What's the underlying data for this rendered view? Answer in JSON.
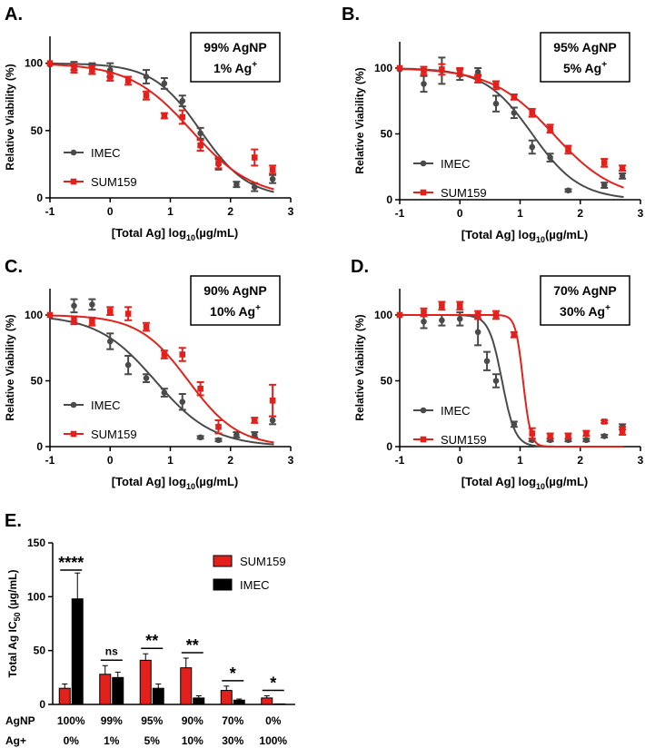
{
  "figure": {
    "colors": {
      "imec": "#4a4a4a",
      "sum159": "#e3201b",
      "axis": "#000000"
    },
    "xaxis_label_main": "[Total  Ag] log",
    "xaxis_label_sub": "10",
    "xaxis_label_end": "(µg/mL)",
    "yaxis_label": "Relative Viability (%)"
  },
  "chart_data": [
    {
      "type": "scatter",
      "panel": "A.",
      "box_line1": "99%  AgNP",
      "box_line2": "1%  Ag",
      "box_sup": "+",
      "xlim": [
        -1,
        3
      ],
      "ylim": [
        0,
        120
      ],
      "xticks": [
        -1,
        0,
        1,
        2,
        3
      ],
      "yticks": [
        0,
        50,
        100
      ],
      "series": [
        {
          "name": "IMEC",
          "color": "#4a4a4a",
          "marker": "circle",
          "x": [
            -1,
            -0.6,
            -0.3,
            0,
            0.6,
            0.9,
            1.2,
            1.5,
            1.8,
            2.1,
            2.4,
            2.7
          ],
          "y": [
            99,
            98,
            96,
            95,
            90,
            85,
            72,
            48,
            25,
            10,
            8,
            14
          ],
          "err": [
            0,
            3,
            4,
            5,
            5,
            4,
            4,
            4,
            4,
            2,
            3,
            3
          ],
          "fit": {
            "top": 100,
            "bottom": 0,
            "logEC50": 1.5,
            "hill": 1.1
          }
        },
        {
          "name": "SUM159",
          "color": "#e3201b",
          "marker": "square",
          "x": [
            -1,
            -0.6,
            -0.3,
            0,
            0.3,
            0.6,
            0.9,
            1.2,
            1.5,
            1.8,
            2.4,
            2.7
          ],
          "y": [
            100,
            96,
            95,
            90,
            87,
            76,
            61,
            60,
            39,
            26,
            30,
            21
          ],
          "err": [
            0,
            3,
            3,
            3,
            3,
            3,
            2,
            5,
            4,
            4,
            6,
            3
          ],
          "fit": {
            "top": 100,
            "bottom": 0,
            "logEC50": 1.35,
            "hill": 0.85
          }
        }
      ]
    },
    {
      "type": "scatter",
      "panel": "B.",
      "box_line1": "95%  AgNP",
      "box_line2": "5%  Ag",
      "box_sup": "+",
      "xlim": [
        -1,
        3
      ],
      "ylim": [
        0,
        120
      ],
      "xticks": [
        -1,
        0,
        1,
        2,
        3
      ],
      "yticks": [
        0,
        50,
        100
      ],
      "series": [
        {
          "name": "IMEC",
          "color": "#4a4a4a",
          "marker": "circle",
          "x": [
            -1,
            -0.6,
            -0.3,
            0,
            0.3,
            0.6,
            0.9,
            1.2,
            1.5,
            1.8,
            2.4,
            2.7
          ],
          "y": [
            99,
            88,
            98,
            95,
            97,
            73,
            66,
            40,
            32,
            7,
            11,
            18
          ],
          "err": [
            0,
            6,
            10,
            4,
            3,
            6,
            4,
            5,
            3,
            1,
            2,
            2
          ],
          "fit": {
            "top": 100,
            "bottom": 0,
            "logEC50": 1.2,
            "hill": 1.1
          }
        },
        {
          "name": "SUM159",
          "color": "#e3201b",
          "marker": "square",
          "x": [
            -1,
            -0.6,
            -0.3,
            0,
            0.3,
            0.6,
            0.9,
            1.2,
            1.5,
            1.8,
            2.4,
            2.7
          ],
          "y": [
            100,
            98,
            99,
            97,
            92,
            87,
            78,
            66,
            54,
            38,
            28,
            24
          ],
          "err": [
            0,
            3,
            4,
            3,
            3,
            3,
            2,
            3,
            3,
            3,
            3,
            2
          ],
          "fit": {
            "top": 100,
            "bottom": 0,
            "logEC50": 1.55,
            "hill": 0.85
          }
        }
      ]
    },
    {
      "type": "scatter",
      "panel": "C.",
      "box_line1": "90%  AgNP",
      "box_line2": "10%  Ag",
      "box_sup": "+",
      "xlim": [
        -1,
        3
      ],
      "ylim": [
        0,
        120
      ],
      "xticks": [
        -1,
        0,
        1,
        2,
        3
      ],
      "yticks": [
        0,
        50,
        100
      ],
      "series": [
        {
          "name": "IMEC",
          "color": "#4a4a4a",
          "marker": "circle",
          "x": [
            -1,
            -0.6,
            -0.3,
            0,
            0.3,
            0.6,
            0.9,
            1.2,
            1.5,
            1.8,
            2.1,
            2.4,
            2.7
          ],
          "y": [
            100,
            107,
            108,
            80,
            62,
            52,
            41,
            34,
            7,
            5,
            9,
            9,
            20
          ],
          "err": [
            0,
            5,
            4,
            6,
            7,
            3,
            3,
            6,
            1,
            1,
            2,
            2,
            3
          ],
          "fit": {
            "top": 100,
            "bottom": 0,
            "logEC50": 0.75,
            "hill": 0.9
          }
        },
        {
          "name": "SUM159",
          "color": "#e3201b",
          "marker": "square",
          "x": [
            -1,
            -0.6,
            -0.3,
            0,
            0.3,
            0.6,
            0.9,
            1.2,
            1.5,
            1.8,
            2.4,
            2.7
          ],
          "y": [
            100,
            96,
            95,
            103,
            101,
            91,
            70,
            70,
            44,
            15,
            20,
            35
          ],
          "err": [
            0,
            3,
            3,
            3,
            5,
            3,
            3,
            5,
            5,
            5,
            2,
            12
          ],
          "fit": {
            "top": 100,
            "bottom": 0,
            "logEC50": 1.3,
            "hill": 1.05
          }
        }
      ]
    },
    {
      "type": "scatter",
      "panel": "D.",
      "box_line1": "70%  AgNP",
      "box_line2": "30%  Ag",
      "box_sup": "+",
      "xlim": [
        -1,
        3
      ],
      "ylim": [
        0,
        120
      ],
      "xticks": [
        -1,
        0,
        1,
        2,
        3
      ],
      "yticks": [
        0,
        50,
        100
      ],
      "series": [
        {
          "name": "IMEC",
          "color": "#4a4a4a",
          "marker": "circle",
          "x": [
            -1,
            -0.6,
            -0.3,
            0,
            0.3,
            0.45,
            0.6,
            0.9,
            1.2,
            1.5,
            1.8,
            2.1,
            2.4,
            2.7
          ],
          "y": [
            100,
            95,
            96,
            97,
            87,
            65,
            50,
            17,
            5,
            5,
            5,
            5,
            8,
            15
          ],
          "err": [
            0,
            5,
            4,
            5,
            10,
            7,
            5,
            2,
            1,
            1,
            1,
            1,
            1,
            2
          ],
          "fit": {
            "top": 100,
            "bottom": 0,
            "logEC50": 0.7,
            "hill": 4
          }
        },
        {
          "name": "SUM159",
          "color": "#e3201b",
          "marker": "square",
          "x": [
            -1,
            -0.6,
            -0.3,
            0,
            0.3,
            0.6,
            0.9,
            1.2,
            1.5,
            1.8,
            2.1,
            2.4,
            2.7
          ],
          "y": [
            100,
            102,
            107,
            107,
            100,
            100,
            85,
            10,
            8,
            8,
            10,
            19,
            12
          ],
          "err": [
            0,
            3,
            3,
            3,
            3,
            3,
            2,
            4,
            2,
            2,
            2,
            1,
            3
          ],
          "fit": {
            "top": 100,
            "bottom": 0,
            "logEC50": 1.05,
            "hill": 7
          }
        }
      ]
    },
    {
      "type": "bar",
      "panel": "E.",
      "ylabel_main": "Total  Ag IC",
      "ylabel_sub": "50",
      "ylabel_end": " (µg/mL)",
      "ylim": [
        0,
        150
      ],
      "yticks": [
        0,
        50,
        100,
        150
      ],
      "row_labels": [
        "AgNP",
        "Ag+"
      ],
      "categories_agnp": [
        "100%",
        "99%",
        "95%",
        "90%",
        "70%",
        "0%"
      ],
      "categories_agplus": [
        "0%",
        "1%",
        "5%",
        "10%",
        "30%",
        "100%"
      ],
      "series": [
        {
          "name": "SUM159",
          "color": "#e3201b",
          "values": [
            15,
            28,
            41,
            34,
            13,
            6
          ],
          "err": [
            4,
            8,
            6,
            9,
            4,
            2
          ]
        },
        {
          "name": "IMEC",
          "color": "#000000",
          "values": [
            98,
            25,
            15,
            6,
            4,
            0.5
          ],
          "err": [
            24,
            5,
            4,
            2,
            1,
            0
          ]
        }
      ],
      "significance": [
        "****",
        "ns",
        "**",
        "**",
        "*",
        "*"
      ]
    }
  ]
}
